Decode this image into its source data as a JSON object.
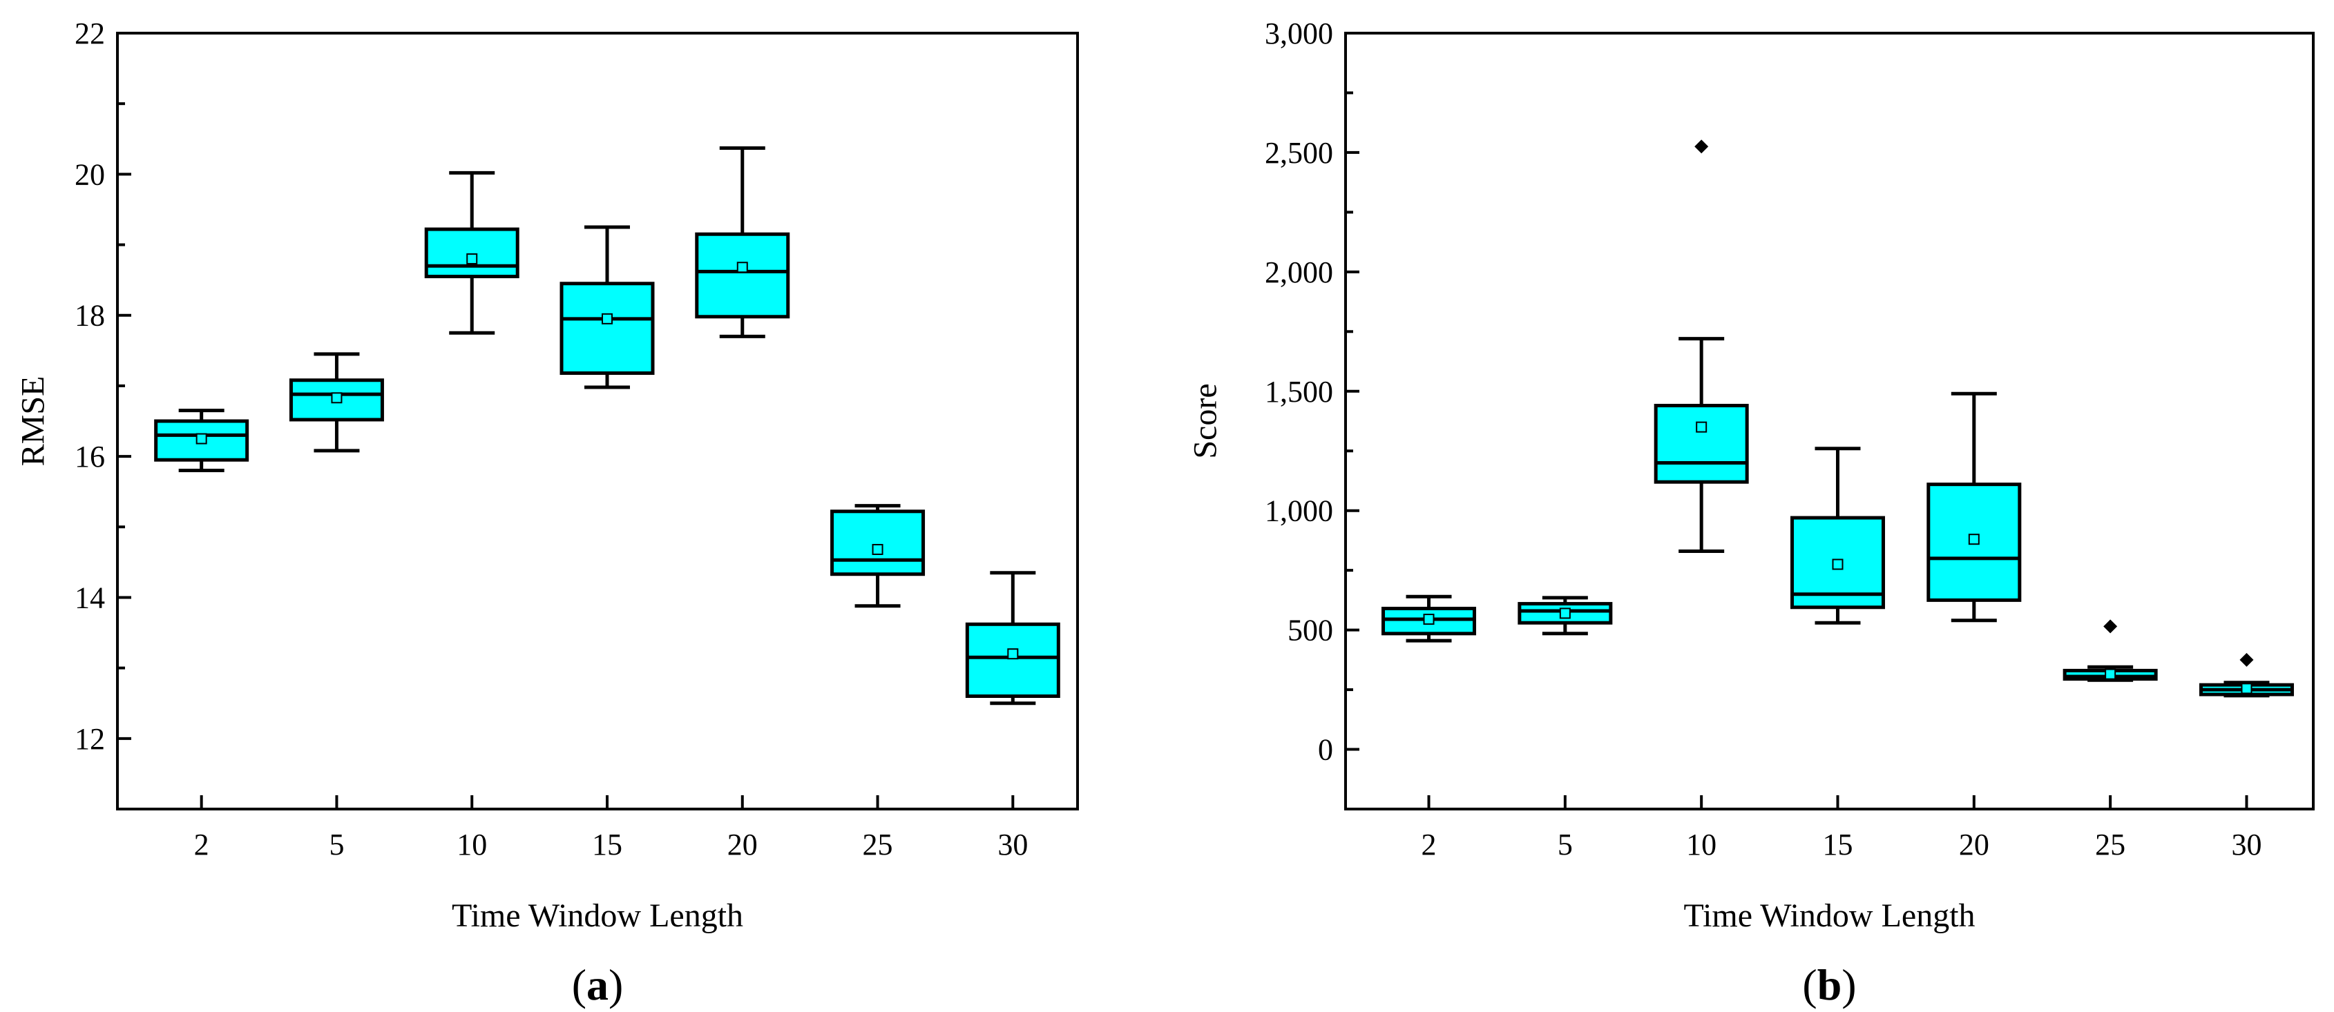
{
  "chart_data": [
    {
      "type": "box",
      "panel_label": "a",
      "xlabel": "Time Window Length",
      "ylabel": "RMSE",
      "ylim": [
        11,
        22
      ],
      "yticks": [
        12,
        14,
        16,
        18,
        20,
        22
      ],
      "ytick_labels": [
        "12",
        "14",
        "16",
        "18",
        "20",
        "22"
      ],
      "ytick_minor": [
        13,
        15,
        17,
        19,
        21
      ],
      "box_color": "#00ffff",
      "categories": [
        "2",
        "5",
        "10",
        "15",
        "20",
        "25",
        "30"
      ],
      "boxes": [
        {
          "whisker_low": 15.8,
          "q1": 15.95,
          "median": 16.3,
          "q3": 16.5,
          "whisker_high": 16.65,
          "mean": 16.25,
          "outliers": []
        },
        {
          "whisker_low": 16.08,
          "q1": 16.52,
          "median": 16.88,
          "q3": 17.08,
          "whisker_high": 17.45,
          "mean": 16.83,
          "outliers": []
        },
        {
          "whisker_low": 17.75,
          "q1": 18.55,
          "median": 18.7,
          "q3": 19.22,
          "whisker_high": 20.02,
          "mean": 18.8,
          "outliers": []
        },
        {
          "whisker_low": 16.98,
          "q1": 17.18,
          "median": 17.95,
          "q3": 18.45,
          "whisker_high": 19.25,
          "mean": 17.95,
          "outliers": []
        },
        {
          "whisker_low": 17.7,
          "q1": 17.98,
          "median": 18.62,
          "q3": 19.15,
          "whisker_high": 20.37,
          "mean": 18.68,
          "outliers": []
        },
        {
          "whisker_low": 13.88,
          "q1": 14.33,
          "median": 14.53,
          "q3": 15.22,
          "whisker_high": 15.3,
          "mean": 14.68,
          "outliers": []
        },
        {
          "whisker_low": 12.5,
          "q1": 12.6,
          "median": 13.15,
          "q3": 13.62,
          "whisker_high": 14.35,
          "mean": 13.2,
          "outliers": []
        }
      ]
    },
    {
      "type": "box",
      "panel_label": "b",
      "xlabel": "Time Window Length",
      "ylabel": "Score",
      "ylim": [
        -250,
        3000
      ],
      "yticks": [
        0,
        500,
        1000,
        1500,
        2000,
        2500,
        3000
      ],
      "ytick_labels": [
        "0",
        "500",
        "1,000",
        "1,500",
        "2,000",
        "2,500",
        "3,000"
      ],
      "ytick_minor": [
        -250,
        250,
        750,
        1250,
        1750,
        2250,
        2750
      ],
      "box_color": "#00ffff",
      "categories": [
        "2",
        "5",
        "10",
        "15",
        "20",
        "25",
        "30"
      ],
      "boxes": [
        {
          "whisker_low": 455,
          "q1": 485,
          "median": 545,
          "q3": 590,
          "whisker_high": 640,
          "mean": 545,
          "outliers": []
        },
        {
          "whisker_low": 485,
          "q1": 530,
          "median": 580,
          "q3": 610,
          "whisker_high": 635,
          "mean": 570,
          "outliers": []
        },
        {
          "whisker_low": 830,
          "q1": 1120,
          "median": 1200,
          "q3": 1440,
          "whisker_high": 1720,
          "mean": 1350,
          "outliers": [
            2525
          ]
        },
        {
          "whisker_low": 530,
          "q1": 595,
          "median": 650,
          "q3": 970,
          "whisker_high": 1260,
          "mean": 775,
          "outliers": []
        },
        {
          "whisker_low": 540,
          "q1": 625,
          "median": 800,
          "q3": 1110,
          "whisker_high": 1490,
          "mean": 880,
          "outliers": []
        },
        {
          "whisker_low": 290,
          "q1": 295,
          "median": 305,
          "q3": 330,
          "whisker_high": 345,
          "mean": 315,
          "outliers": [
            515
          ]
        },
        {
          "whisker_low": 225,
          "q1": 230,
          "median": 250,
          "q3": 270,
          "whisker_high": 280,
          "mean": 255,
          "outliers": [
            375
          ]
        }
      ]
    }
  ]
}
